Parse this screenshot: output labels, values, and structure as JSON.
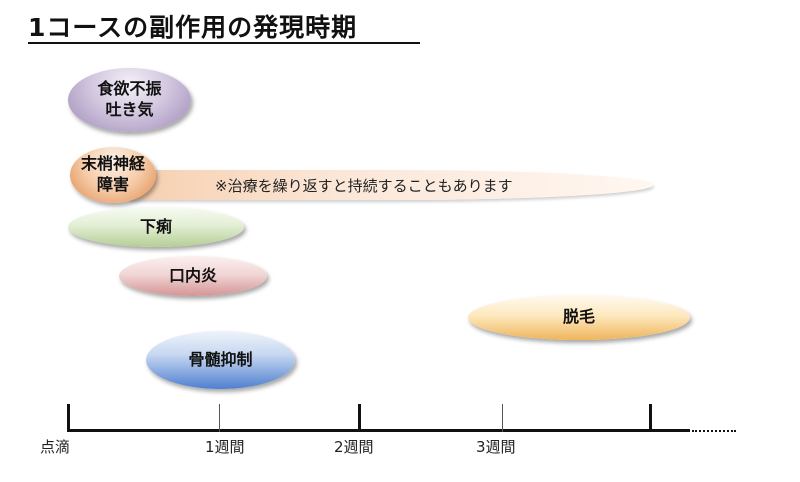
{
  "title": "1コースの副作用の発現時期",
  "effects": [
    {
      "id": "anorexia",
      "lines": [
        "食欲不振",
        "吐き気"
      ]
    },
    {
      "id": "neuropathy",
      "lines": [
        "末梢神経",
        "障害"
      ],
      "note": "※治療を繰り返すと持続することもあります"
    },
    {
      "id": "diarrhea",
      "lines": [
        "下痢"
      ]
    },
    {
      "id": "stomatitis",
      "lines": [
        "口内炎"
      ]
    },
    {
      "id": "alopecia",
      "lines": [
        "脱毛"
      ]
    },
    {
      "id": "marrow",
      "lines": [
        "骨髄抑制"
      ]
    }
  ],
  "axis": {
    "labels": [
      "点滴",
      "1週間",
      "2週間",
      "3週間"
    ]
  },
  "colors": {
    "anorexia": "#b7a7cc",
    "neuropathy": "#ecae80",
    "diarrhea": "#c9e0af",
    "stomatitis": "#e3b3b3",
    "alopecia": "#f6cd85",
    "marrow": "#6f96da"
  }
}
